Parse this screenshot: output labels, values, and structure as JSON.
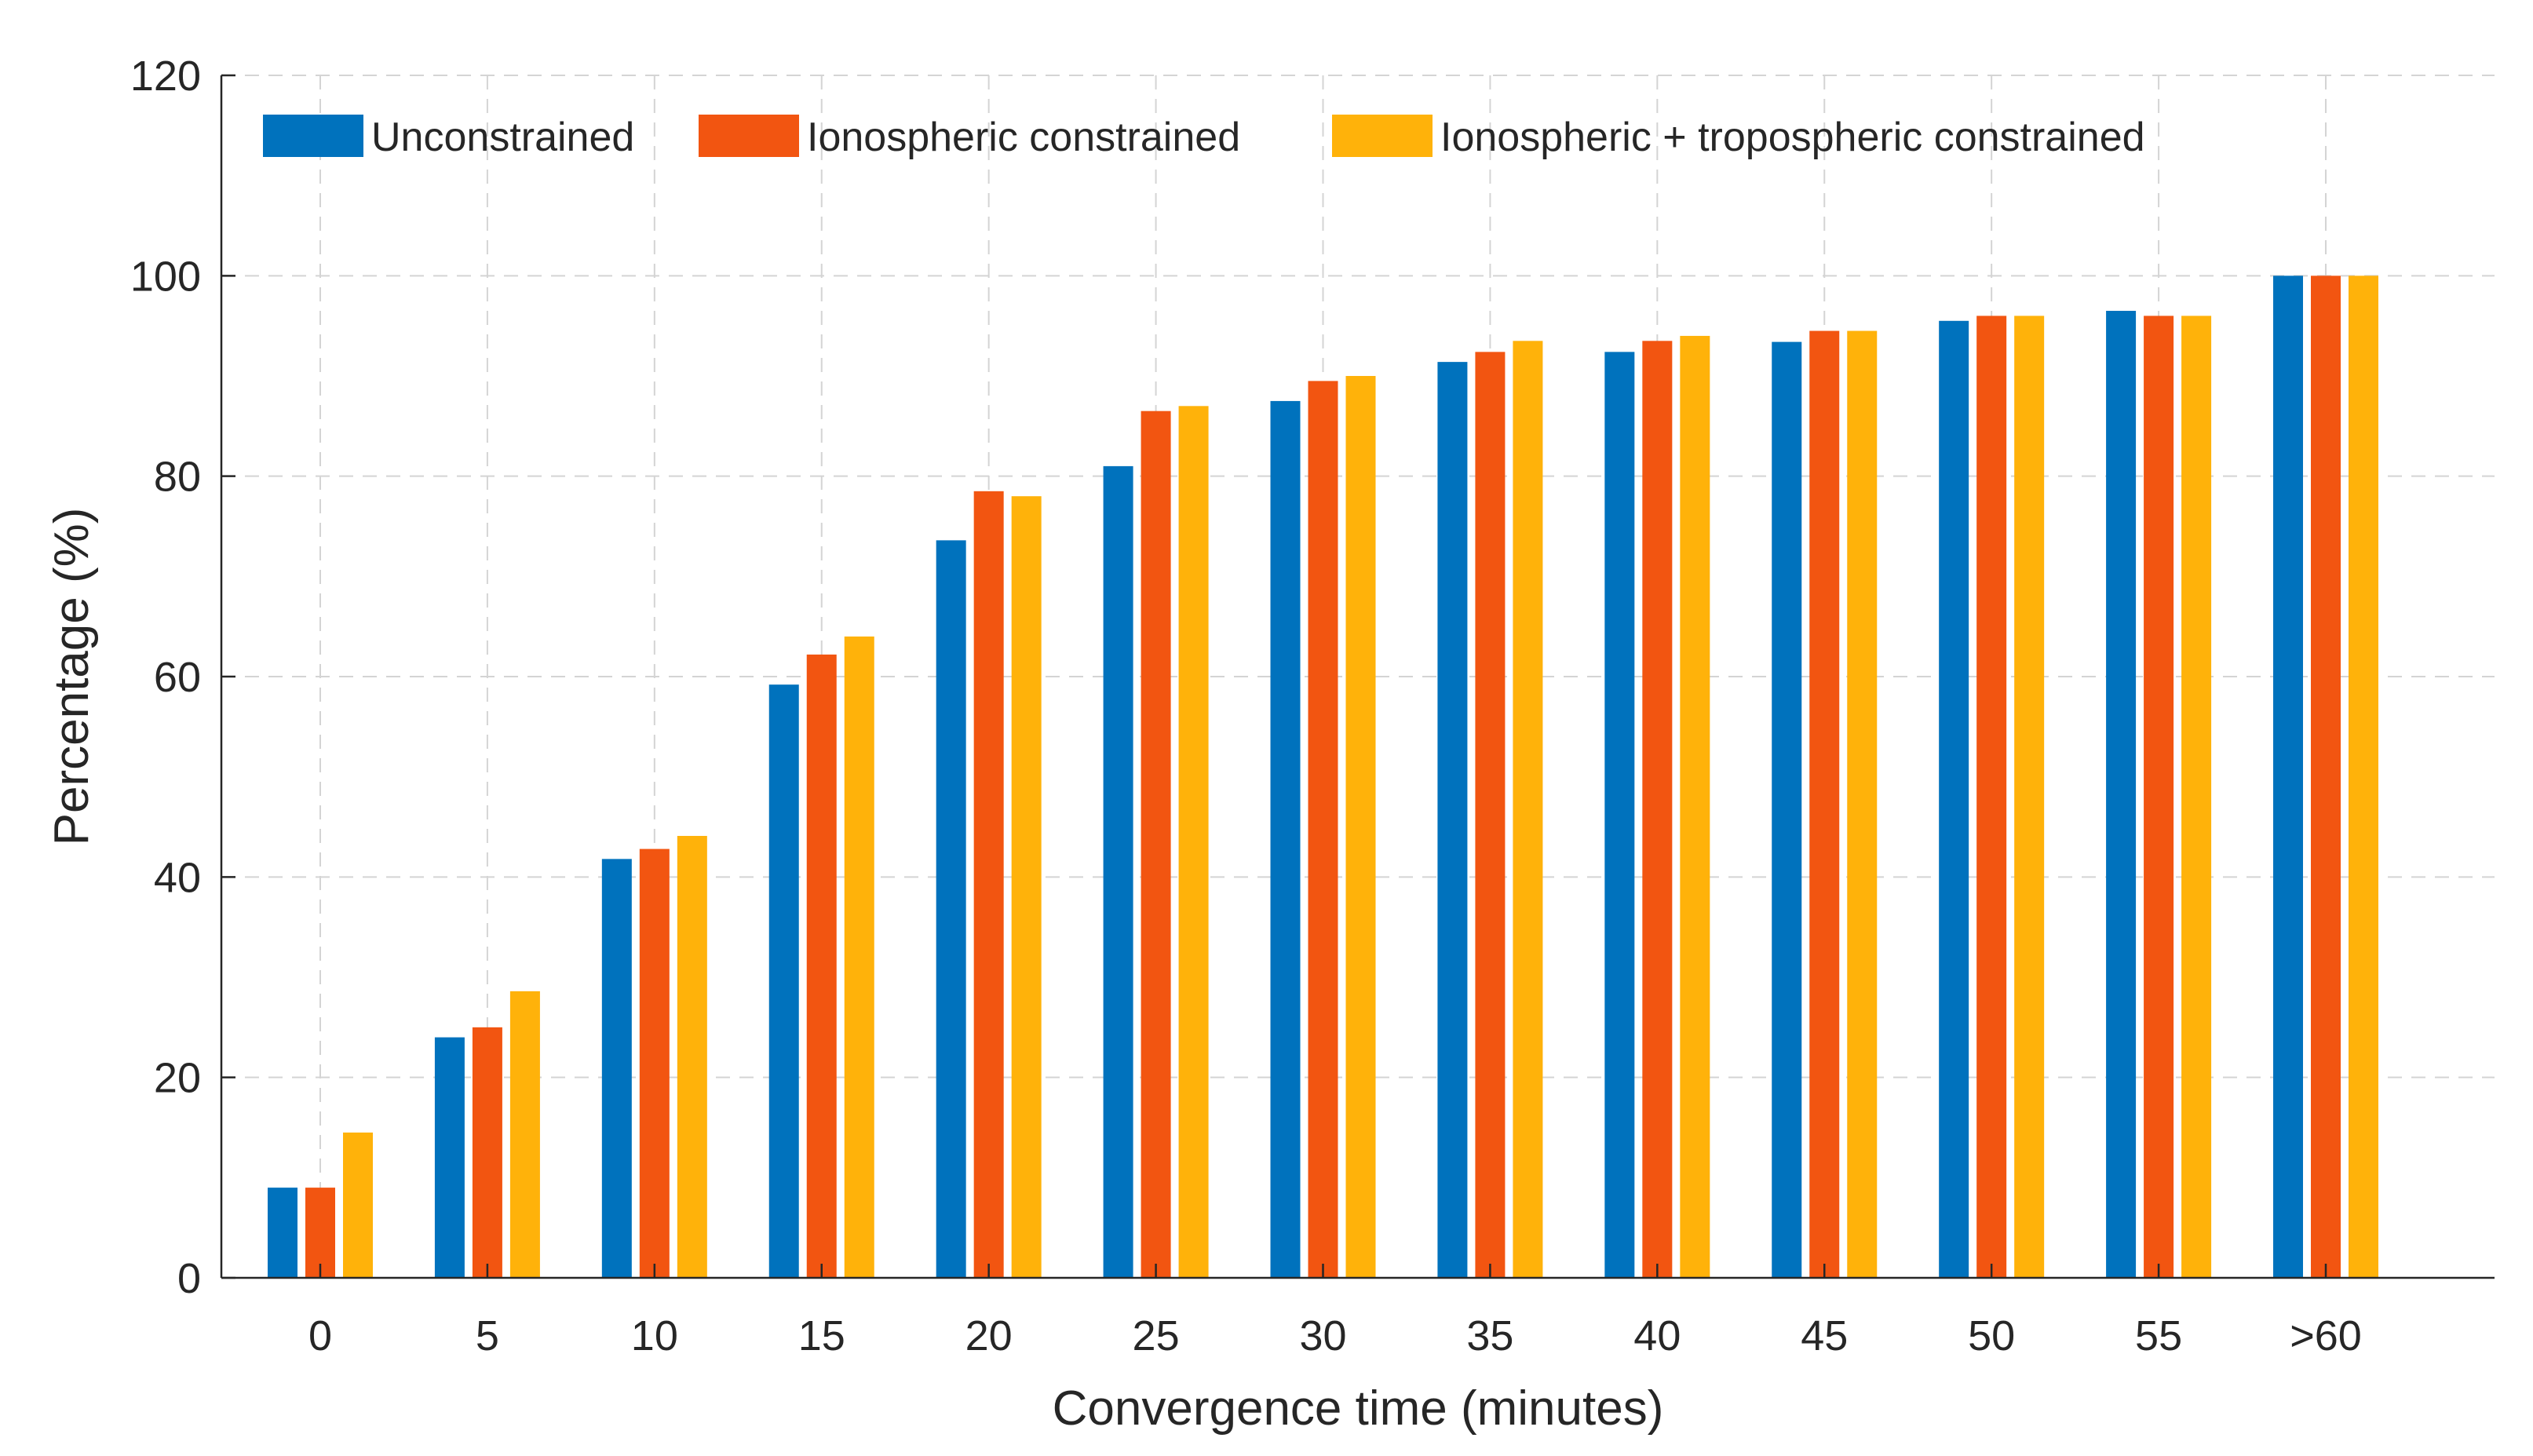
{
  "chart_data": {
    "type": "bar",
    "title": "",
    "xlabel": "Convergence time (minutes)",
    "ylabel": "Percentage (%)",
    "ylim": [
      0,
      120
    ],
    "yticks": [
      "0",
      "20",
      "40",
      "60",
      "80",
      "100",
      "120"
    ],
    "categories": [
      "0",
      "5",
      "10",
      "15",
      "20",
      "25",
      "30",
      "35",
      "40",
      "45",
      "50",
      "55",
      ">60"
    ],
    "grid": "on",
    "legend_position": "top-left",
    "series": [
      {
        "name": "Unconstrained",
        "color": "#0072BD",
        "values": [
          9,
          24,
          41.8,
          59.2,
          73.6,
          81,
          87.5,
          91.4,
          92.4,
          93.4,
          95.5,
          96.5,
          100
        ]
      },
      {
        "name": "Ionospheric constrained",
        "color": "#F25511",
        "values": [
          9,
          25,
          42.8,
          62.2,
          78.5,
          86.5,
          89.5,
          92.4,
          93.5,
          94.5,
          96,
          96,
          100
        ]
      },
      {
        "name": "Ionospheric + tropospheric constrained",
        "color": "#FFB20A",
        "values": [
          14.5,
          28.6,
          44.1,
          64,
          78,
          87,
          90,
          93.5,
          94,
          94.5,
          96,
          96,
          100
        ]
      }
    ]
  }
}
